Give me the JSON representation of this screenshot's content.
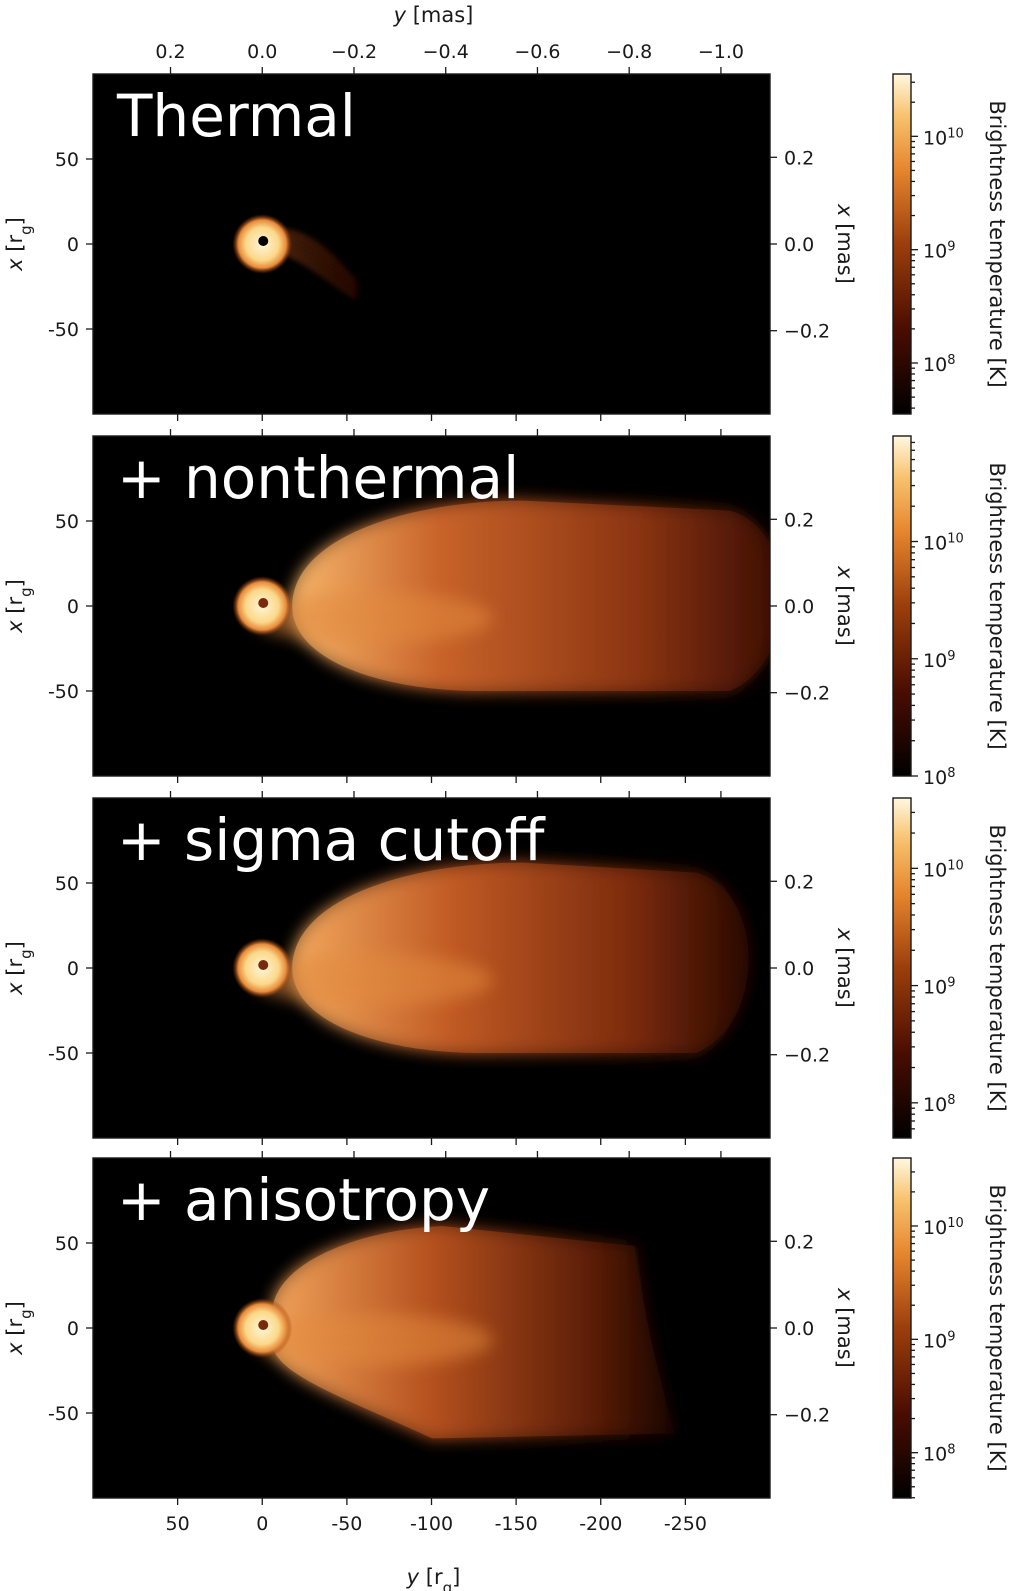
{
  "chart_data": {
    "type": "heatmap",
    "colormap": "afmhot",
    "top_axis": {
      "label_var": "y",
      "label_unit": "[mas]",
      "ticks": [
        "0.2",
        "0.0",
        "−0.2",
        "−0.4",
        "−0.6",
        "−0.8",
        "−1.0"
      ],
      "tick_values": [
        0.2,
        0.0,
        -0.2,
        -0.4,
        -0.6,
        -0.8,
        -1.0
      ]
    },
    "bottom_axis": {
      "label_var": "y",
      "label_sub": "g",
      "label_unit_open": "[r",
      "label_unit_close": "]",
      "ticks": [
        "50",
        "0",
        "-50",
        "-100",
        "-150",
        "-200",
        "-250"
      ],
      "tick_values": [
        50,
        0,
        -50,
        -100,
        -150,
        -200,
        -250
      ]
    },
    "xlim_rg": [
      100,
      -300
    ],
    "ylim_rg": [
      -100,
      100
    ],
    "left_axis": {
      "label_var": "x",
      "label_sub": "g",
      "label_unit_open": "[r",
      "label_unit_close": "]",
      "ticks": [
        "50",
        "0",
        "-50"
      ],
      "tick_values": [
        50,
        0,
        -50
      ]
    },
    "right_axis": {
      "label_var": "x",
      "label_unit": "[mas]",
      "ticks": [
        "0.2",
        "0.0",
        "−0.2"
      ],
      "tick_values": [
        0.2,
        0.0,
        -0.2
      ]
    },
    "colorbar_label": "Brightness temperature [K]",
    "panels": [
      {
        "title": "Thermal",
        "jet_extent_rg": 50,
        "colorbar_range": [
          7.55,
          10.55
        ],
        "colorbar_ticks": [
          {
            "base": "10",
            "exp": "8",
            "value": 8
          },
          {
            "base": "10",
            "exp": "9",
            "value": 9
          },
          {
            "base": "10",
            "exp": "10",
            "value": 10
          }
        ]
      },
      {
        "title": "+ nonthermal",
        "jet_extent_rg": -300,
        "colorbar_range": [
          8.0,
          10.9
        ],
        "colorbar_ticks": [
          {
            "base": "10",
            "exp": "8",
            "value": 8
          },
          {
            "base": "10",
            "exp": "9",
            "value": 9
          },
          {
            "base": "10",
            "exp": "10",
            "value": 10
          }
        ]
      },
      {
        "title": "+ sigma cutoff",
        "jet_extent_rg": -280,
        "colorbar_range": [
          7.7,
          10.6
        ],
        "colorbar_ticks": [
          {
            "base": "10",
            "exp": "8",
            "value": 8
          },
          {
            "base": "10",
            "exp": "9",
            "value": 9
          },
          {
            "base": "10",
            "exp": "10",
            "value": 10
          }
        ]
      },
      {
        "title": "+ anisotropy",
        "jet_extent_rg": -220,
        "colorbar_range": [
          7.6,
          10.6
        ],
        "colorbar_ticks": [
          {
            "base": "10",
            "exp": "8",
            "value": 8
          },
          {
            "base": "10",
            "exp": "9",
            "value": 9
          },
          {
            "base": "10",
            "exp": "10",
            "value": 10
          }
        ]
      }
    ]
  }
}
